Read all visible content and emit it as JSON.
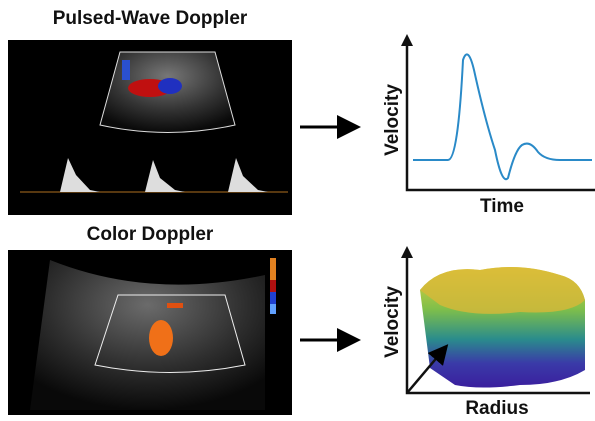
{
  "panels": [
    {
      "title": "Pulsed-Wave Doppler",
      "plot": {
        "y_label": "Velocity",
        "x_label": "Time"
      }
    },
    {
      "title": "Color Doppler",
      "plot": {
        "y_label": "Velocity",
        "x_label": "Radius"
      }
    }
  ]
}
